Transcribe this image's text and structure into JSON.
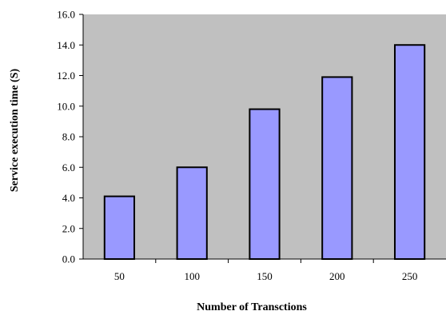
{
  "chart_data": {
    "type": "bar",
    "title": "",
    "xlabel": "Number of Transctions",
    "ylabel": "Service execution time (S)",
    "categories": [
      "50",
      "100",
      "150",
      "200",
      "250"
    ],
    "values": [
      4.1,
      6.0,
      9.8,
      11.9,
      14.0
    ],
    "ylim": [
      0,
      16
    ],
    "yticks": [
      "0.0",
      "2.0",
      "4.0",
      "6.0",
      "8.0",
      "10.0",
      "12.0",
      "14.0",
      "16.0"
    ],
    "grid": false,
    "legend": "none",
    "colors": {
      "plot_background": "#c0c0c0",
      "bar_fill": "#9999ff",
      "bar_stroke": "#000000"
    }
  }
}
